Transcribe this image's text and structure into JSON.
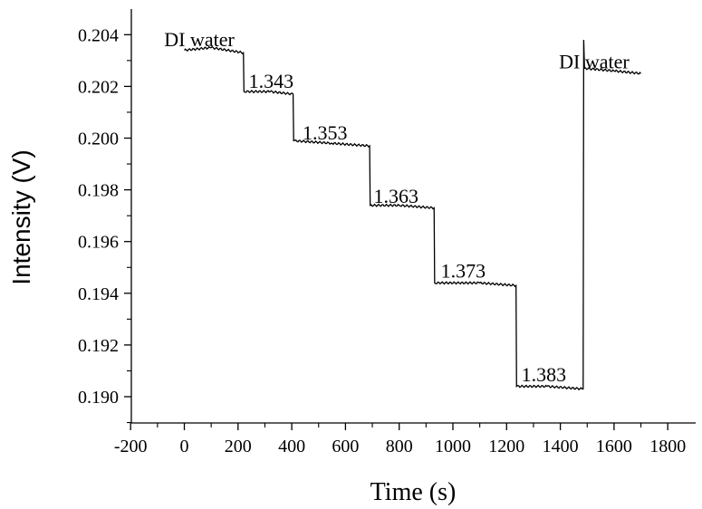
{
  "chart_data": {
    "type": "line",
    "title": "",
    "xlabel": "Time (s)",
    "ylabel": "Intensity (V)",
    "xlim": [
      -200,
      1900
    ],
    "ylim": [
      0.189,
      0.2045
    ],
    "x_ticks": [
      -200,
      0,
      200,
      400,
      600,
      800,
      1000,
      1200,
      1400,
      1600,
      1800
    ],
    "x_tick_labels": [
      "-200",
      "0",
      "200",
      "400",
      "600",
      "800",
      "1000",
      "1200",
      "1400",
      "1600",
      "1800"
    ],
    "y_ticks": [
      0.19,
      0.192,
      0.194,
      0.196,
      0.198,
      0.2,
      0.202,
      0.204
    ],
    "y_tick_labels": [
      "0.190",
      "0.192",
      "0.194",
      "0.196",
      "0.198",
      "0.200",
      "0.202",
      "0.204"
    ],
    "grid": false,
    "legend": "none",
    "series": [
      {
        "color": "#000000",
        "points": [
          [
            0,
            0.2034
          ],
          [
            100,
            0.2035
          ],
          [
            220,
            0.2033
          ],
          [
            222,
            0.2018
          ],
          [
            320,
            0.2018
          ],
          [
            405,
            0.2017
          ],
          [
            407,
            0.1999
          ],
          [
            550,
            0.1998
          ],
          [
            690,
            0.1997
          ],
          [
            692,
            0.1974
          ],
          [
            800,
            0.1974
          ],
          [
            930,
            0.1973
          ],
          [
            932,
            0.1944
          ],
          [
            1100,
            0.1944
          ],
          [
            1235,
            0.1943
          ],
          [
            1237,
            0.1904
          ],
          [
            1350,
            0.1904
          ],
          [
            1485,
            0.1903
          ],
          [
            1487,
            0.2038
          ],
          [
            1490,
            0.2027
          ],
          [
            1600,
            0.2026
          ],
          [
            1700,
            0.2025
          ]
        ]
      }
    ],
    "annotations": [
      {
        "text": "DI water",
        "x": -75,
        "y": 0.20355
      },
      {
        "text": "1.343",
        "x": 240,
        "y": 0.20195
      },
      {
        "text": "1.353",
        "x": 440,
        "y": 0.19995
      },
      {
        "text": "1.363",
        "x": 705,
        "y": 0.1975
      },
      {
        "text": "1.373",
        "x": 955,
        "y": 0.1946
      },
      {
        "text": "1.383",
        "x": 1255,
        "y": 0.1906
      },
      {
        "text": "DI water",
        "x": 1395,
        "y": 0.2027
      }
    ]
  }
}
